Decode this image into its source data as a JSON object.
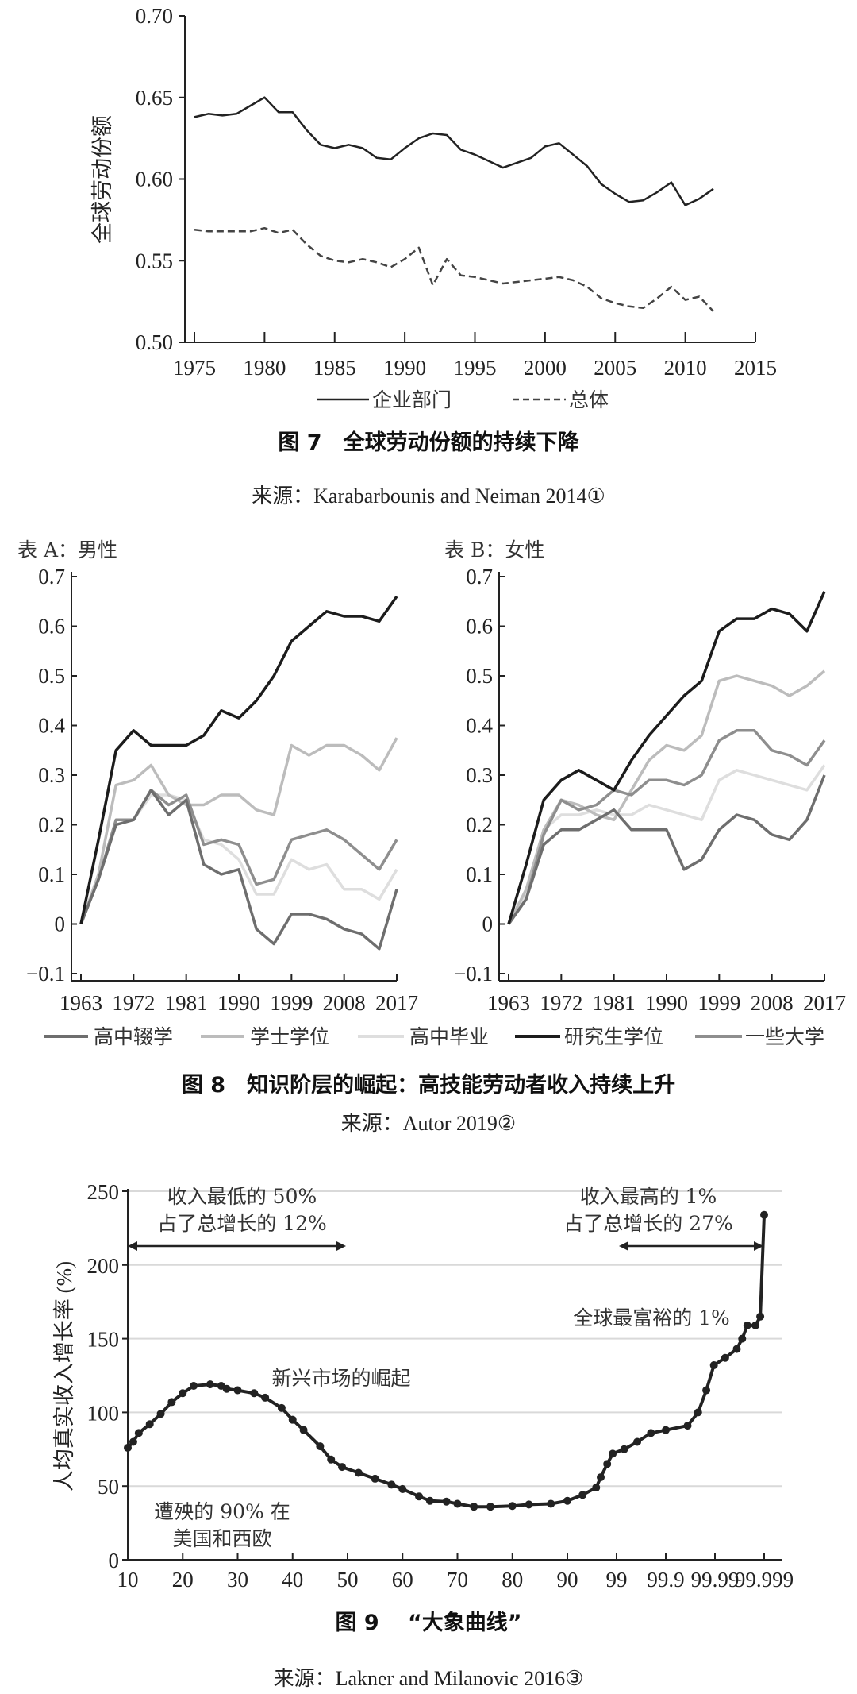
{
  "chart_data": [
    {
      "type": "line",
      "id": "fig7",
      "caption": "图 7　全球劳动份额的持续下降",
      "source": "来源：Karabarbounis and Neiman 2014①",
      "ylabel": "全球劳动份额",
      "xlabel": "",
      "xlim": [
        1975,
        2015
      ],
      "ylim": [
        0.5,
        0.7
      ],
      "xticks": [
        "1975",
        "1980",
        "1985",
        "1990",
        "1995",
        "2000",
        "2005",
        "2010",
        "2015"
      ],
      "yticks": [
        "0.70",
        "0.65",
        "0.60",
        "0.55",
        "0.50"
      ],
      "legend_position": "bottom",
      "x": [
        1975,
        1976,
        1977,
        1978,
        1979,
        1980,
        1981,
        1982,
        1983,
        1984,
        1985,
        1986,
        1987,
        1988,
        1989,
        1990,
        1991,
        1992,
        1993,
        1994,
        1995,
        1996,
        1997,
        1998,
        1999,
        2000,
        2001,
        2002,
        2003,
        2004,
        2005,
        2006,
        2007,
        2008,
        2009,
        2010,
        2011,
        2012
      ],
      "series": [
        {
          "name": "企业部门",
          "style": "solid",
          "color": "#222222",
          "values": [
            0.638,
            0.64,
            0.639,
            0.64,
            0.645,
            0.65,
            0.641,
            0.641,
            0.63,
            0.621,
            0.619,
            0.621,
            0.619,
            0.613,
            0.612,
            0.619,
            0.625,
            0.628,
            0.627,
            0.618,
            0.615,
            0.611,
            0.607,
            0.61,
            0.613,
            0.62,
            0.622,
            0.615,
            0.608,
            0.597,
            0.591,
            0.586,
            0.587,
            0.592,
            0.598,
            0.584,
            0.588,
            0.594
          ]
        },
        {
          "name": "总体",
          "style": "dashed",
          "color": "#444444",
          "values": [
            0.569,
            0.568,
            0.568,
            0.568,
            0.568,
            0.57,
            0.567,
            0.569,
            0.56,
            0.553,
            0.55,
            0.549,
            0.551,
            0.549,
            0.546,
            0.551,
            0.558,
            0.535,
            0.551,
            0.541,
            0.54,
            0.538,
            0.536,
            0.537,
            0.538,
            0.539,
            0.54,
            0.538,
            0.534,
            0.527,
            0.524,
            0.522,
            0.521,
            0.527,
            0.534,
            0.526,
            0.528,
            0.519
          ]
        }
      ]
    },
    {
      "type": "line",
      "id": "fig8",
      "caption": "图 8　知识阶层的崛起：高技能劳动者收入持续上升",
      "source": "来源：Autor 2019②",
      "ylim": [
        -0.1,
        0.7
      ],
      "yticks": [
        "0.7",
        "0.6",
        "0.5",
        "0.4",
        "0.3",
        "0.2",
        "0.1",
        "0",
        "−0.1"
      ],
      "ytick_values": [
        0.7,
        0.6,
        0.5,
        0.4,
        0.3,
        0.2,
        0.1,
        0,
        -0.1
      ],
      "xticks": [
        "1963",
        "1972",
        "1981",
        "1990",
        "1999",
        "2008",
        "2017"
      ],
      "xtick_values": [
        1963,
        1972,
        1981,
        1990,
        1999,
        2008,
        2017
      ],
      "xlim": [
        1963,
        2017
      ],
      "legend_position": "bottom",
      "legend": [
        {
          "name": "高中辍学",
          "color": "#6e6e6e"
        },
        {
          "name": "学士学位",
          "color": "#bcbcbc"
        },
        {
          "name": "高中毕业",
          "color": "#dedede"
        },
        {
          "name": "研究生学位",
          "color": "#1c1c1c"
        },
        {
          "name": "一些大学",
          "color": "#8e8e8e"
        }
      ],
      "x": [
        1963,
        1966,
        1969,
        1972,
        1975,
        1978,
        1981,
        1984,
        1987,
        1990,
        1993,
        1996,
        1999,
        2002,
        2005,
        2008,
        2011,
        2014,
        2017
      ],
      "panels": [
        {
          "title": "表 A：男性",
          "series": [
            {
              "name": "高中毕业",
              "values": [
                0,
                0.09,
                0.21,
                0.21,
                0.26,
                0.26,
                0.25,
                0.17,
                0.16,
                0.13,
                0.06,
                0.06,
                0.13,
                0.11,
                0.12,
                0.07,
                0.07,
                0.05,
                0.11
              ]
            },
            {
              "name": "学士学位",
              "values": [
                0,
                0.1,
                0.28,
                0.29,
                0.32,
                0.26,
                0.24,
                0.24,
                0.26,
                0.26,
                0.23,
                0.22,
                0.36,
                0.34,
                0.36,
                0.36,
                0.34,
                0.31,
                0.375
              ]
            },
            {
              "name": "一些大学",
              "values": [
                0,
                0.09,
                0.21,
                0.21,
                0.27,
                0.24,
                0.26,
                0.16,
                0.17,
                0.16,
                0.08,
                0.09,
                0.17,
                0.18,
                0.19,
                0.17,
                0.14,
                0.11,
                0.17
              ]
            },
            {
              "name": "高中辍学",
              "values": [
                0,
                0.09,
                0.2,
                0.21,
                0.27,
                0.22,
                0.25,
                0.12,
                0.1,
                0.11,
                -0.01,
                -0.04,
                0.02,
                0.02,
                0.01,
                -0.01,
                -0.02,
                -0.05,
                0.07
              ]
            },
            {
              "name": "研究生学位",
              "values": [
                0,
                0.17,
                0.35,
                0.39,
                0.36,
                0.36,
                0.36,
                0.38,
                0.43,
                0.415,
                0.45,
                0.5,
                0.57,
                0.6,
                0.63,
                0.62,
                0.62,
                0.61,
                0.66
              ]
            }
          ]
        },
        {
          "title": "表 B：女性",
          "series": [
            {
              "name": "高中毕业",
              "values": [
                0,
                0.06,
                0.19,
                0.22,
                0.22,
                0.23,
                0.22,
                0.22,
                0.24,
                0.23,
                0.22,
                0.21,
                0.29,
                0.31,
                0.3,
                0.29,
                0.28,
                0.27,
                0.32
              ]
            },
            {
              "name": "学士学位",
              "values": [
                0,
                0.07,
                0.19,
                0.25,
                0.24,
                0.22,
                0.21,
                0.27,
                0.33,
                0.36,
                0.35,
                0.38,
                0.49,
                0.5,
                0.49,
                0.48,
                0.46,
                0.48,
                0.51
              ]
            },
            {
              "name": "一些大学",
              "values": [
                0,
                0.05,
                0.18,
                0.25,
                0.23,
                0.24,
                0.27,
                0.26,
                0.29,
                0.29,
                0.28,
                0.3,
                0.37,
                0.39,
                0.39,
                0.35,
                0.34,
                0.32,
                0.37
              ]
            },
            {
              "name": "高中辍学",
              "values": [
                0,
                0.05,
                0.16,
                0.19,
                0.19,
                0.21,
                0.23,
                0.19,
                0.19,
                0.19,
                0.11,
                0.13,
                0.19,
                0.22,
                0.21,
                0.18,
                0.17,
                0.21,
                0.3
              ]
            },
            {
              "name": "研究生学位",
              "values": [
                0,
                0.12,
                0.25,
                0.29,
                0.31,
                0.29,
                0.27,
                0.33,
                0.38,
                0.42,
                0.46,
                0.49,
                0.59,
                0.615,
                0.615,
                0.635,
                0.625,
                0.59,
                0.67
              ]
            }
          ]
        }
      ]
    },
    {
      "type": "line",
      "id": "fig9",
      "caption": "图 9　 “大象曲线”",
      "source": "来源：Lakner and Milanovic 2016③",
      "ylabel": "人均真实收入增长率 (%)",
      "ylim": [
        0,
        250
      ],
      "yticks": [
        "250",
        "200",
        "150",
        "100",
        "50",
        "0"
      ],
      "ytick_values": [
        250,
        200,
        150,
        100,
        50,
        0
      ],
      "xticks": [
        "10",
        "20",
        "30",
        "40",
        "50",
        "60",
        "70",
        "80",
        "90",
        "99",
        "99.9",
        "99.99",
        "99.999"
      ],
      "xtick_values": [
        10,
        20,
        30,
        40,
        50,
        60,
        70,
        80,
        90,
        99,
        99.9,
        99.99,
        99.999
      ],
      "grid": true,
      "annotations": {
        "bottom_half_line1": "收入最低的 50%",
        "bottom_half_line2": "占了总增长的 12%",
        "top_line1": "收入最高的 1%",
        "top_line2": "占了总增长的 27%",
        "richest": "全球最富裕的 1%",
        "emerging": "新兴市场的崛起",
        "losers_line1": "遭殃的 90% 在",
        "losers_line2": "美国和西欧"
      },
      "points": [
        [
          10,
          76
        ],
        [
          11,
          80
        ],
        [
          12,
          86
        ],
        [
          14,
          92
        ],
        [
          16,
          99
        ],
        [
          18,
          107
        ],
        [
          20,
          113
        ],
        [
          22,
          118
        ],
        [
          25,
          119
        ],
        [
          27,
          118
        ],
        [
          28,
          116
        ],
        [
          30,
          115
        ],
        [
          33,
          113
        ],
        [
          35,
          110
        ],
        [
          38,
          103
        ],
        [
          40,
          95
        ],
        [
          42,
          88
        ],
        [
          45,
          77
        ],
        [
          47,
          68
        ],
        [
          49,
          63
        ],
        [
          52,
          59
        ],
        [
          55,
          55
        ],
        [
          58,
          51
        ],
        [
          60,
          48
        ],
        [
          63,
          43
        ],
        [
          65,
          40
        ],
        [
          68,
          39.5
        ],
        [
          70,
          38
        ],
        [
          73,
          36
        ],
        [
          76,
          36
        ],
        [
          80,
          36.5
        ],
        [
          83,
          37.5
        ],
        [
          87,
          38
        ],
        [
          90,
          40
        ],
        [
          95.1,
          44
        ],
        [
          97.4,
          49
        ],
        [
          97.9,
          56
        ],
        [
          98.45,
          65
        ],
        [
          98.8,
          72
        ],
        [
          99.3,
          75
        ],
        [
          99.62,
          80
        ],
        [
          99.8,
          86
        ],
        [
          99.9,
          88
        ],
        [
          99.964,
          91
        ],
        [
          99.978,
          100
        ],
        [
          99.985,
          115
        ],
        [
          99.9895,
          132
        ],
        [
          99.9938,
          137
        ],
        [
          99.9964,
          143
        ],
        [
          99.9972,
          150
        ],
        [
          99.9978,
          159
        ],
        [
          99.9985,
          159
        ],
        [
          99.9988,
          165
        ],
        [
          99.999,
          234
        ]
      ]
    }
  ]
}
